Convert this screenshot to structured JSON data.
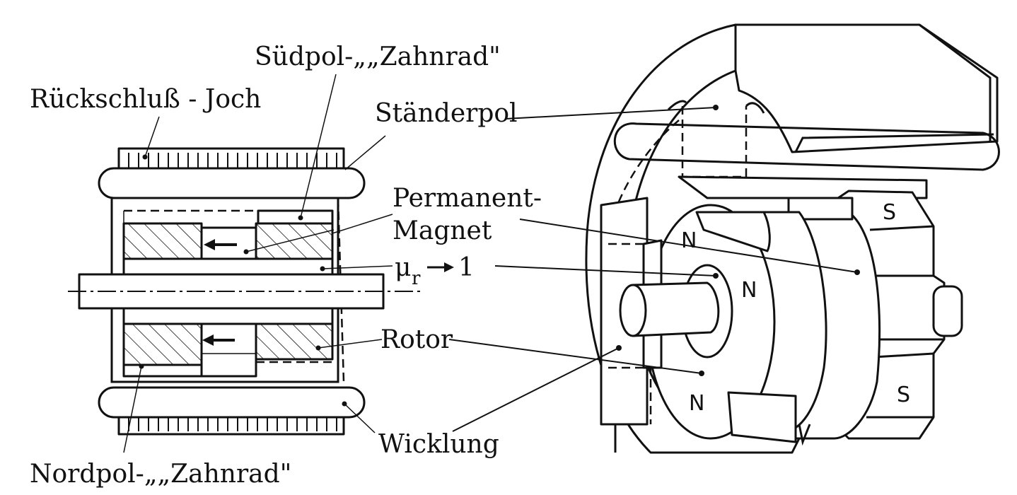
{
  "labels": {
    "ruckschluss_joch": "Rückschluß - Joch",
    "sudpol_zahnrad": "Südpol-„„Zahnrad\"",
    "standerpol": "Ständerpol",
    "permanent": "Permanent-",
    "magnet": "Magnet",
    "mu_r": "μ",
    "mu_sub": "r",
    "mu_value": "1",
    "rotor": "Rotor",
    "wicklung": "Wicklung",
    "nordpol_zahnrad": "Nordpol-„„Zahnrad\""
  },
  "pole_marks": {
    "north": "N",
    "south": "S"
  },
  "colors": {
    "ink": "#111111",
    "background": "#ffffff"
  }
}
